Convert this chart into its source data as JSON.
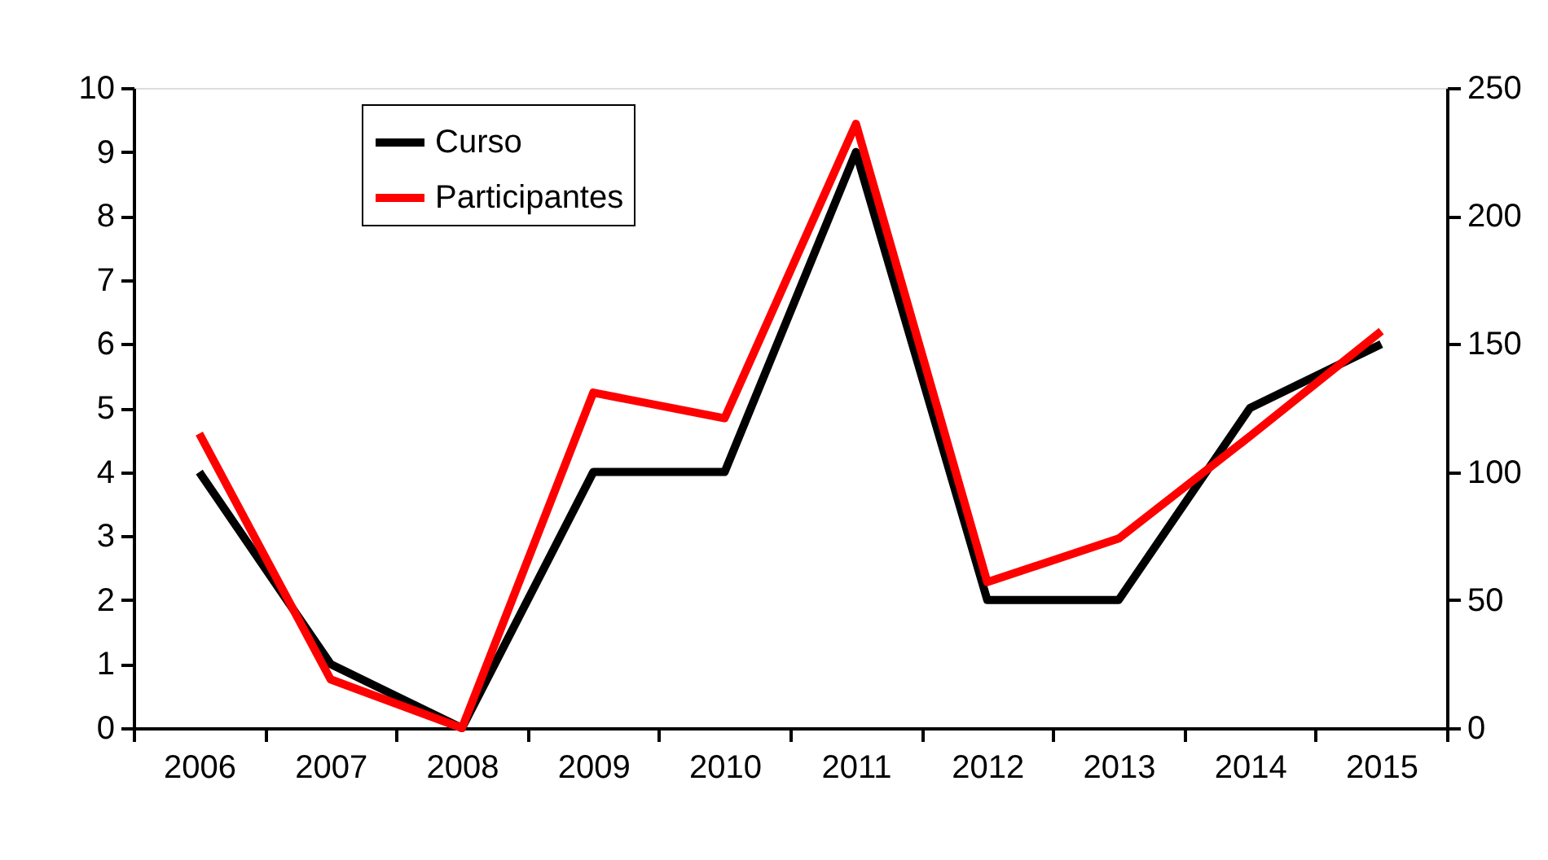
{
  "chart_data": {
    "type": "line",
    "categories": [
      "2006",
      "2007",
      "2008",
      "2009",
      "2010",
      "2011",
      "2012",
      "2013",
      "2014",
      "2015"
    ],
    "series": [
      {
        "name": "Curso",
        "color": "#000000",
        "values": [
          4,
          1,
          0,
          4,
          4,
          9,
          2,
          2,
          5,
          6
        ]
      },
      {
        "name": "Participantes",
        "color": "#ff0000",
        "axis": "y2",
        "values": [
          115,
          19,
          0,
          131,
          121,
          236,
          57,
          74,
          114,
          155
        ]
      }
    ],
    "ylim": [
      0,
      10
    ],
    "yticks": [
      0,
      1,
      2,
      3,
      4,
      5,
      6,
      7,
      8,
      9,
      10
    ],
    "y2lim": [
      0,
      250
    ],
    "y2ticks": [
      0,
      50,
      100,
      150,
      200,
      250
    ],
    "legend": "top left",
    "grid": false,
    "marker": "none",
    "line_style": "solid"
  }
}
